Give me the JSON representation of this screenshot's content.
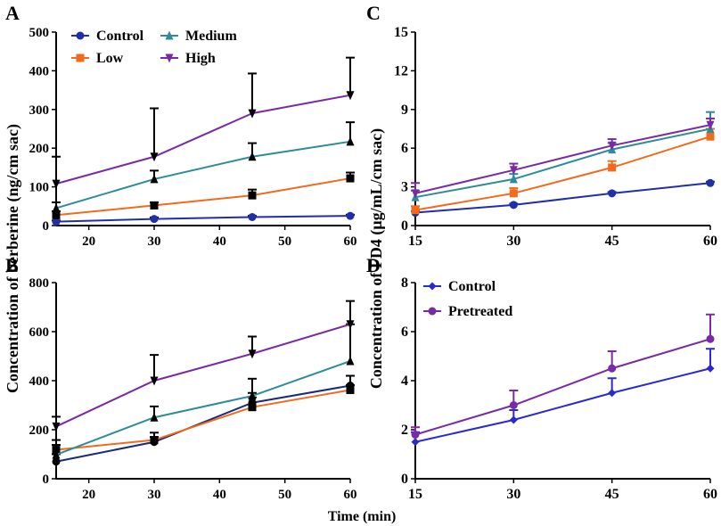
{
  "figure": {
    "shared_ylabel": "Concentration of berberine (ng/cm sac)",
    "shared_ylabel_right": "Concentration of FD4 (μg/mL/cm sac)",
    "shared_xlabel": "Time (min)"
  },
  "chart_data": [
    {
      "panel": "A",
      "type": "line",
      "x": [
        15,
        30,
        45,
        60
      ],
      "xlim": [
        15,
        60
      ],
      "ylim": [
        0,
        500
      ],
      "xticks": [
        "20",
        "30",
        "40",
        "50",
        "60"
      ],
      "yticks": [
        "0",
        "100",
        "200",
        "300",
        "400",
        "500"
      ],
      "legend": "top-left",
      "series": [
        {
          "name": "Control",
          "color": "#1f2fa8",
          "marker": "circle",
          "values": [
            10,
            17,
            22,
            25
          ],
          "errors": [
            3,
            4,
            3,
            3
          ]
        },
        {
          "name": "Low",
          "color": "#f26b1d",
          "marker": "square",
          "values": [
            27,
            52,
            78,
            122
          ],
          "errors": [
            10,
            8,
            15,
            15
          ]
        },
        {
          "name": "Medium",
          "color": "#2e8b99",
          "marker": "triangle-up",
          "values": [
            45,
            120,
            178,
            217
          ],
          "errors": [
            15,
            22,
            35,
            50
          ]
        },
        {
          "name": "High",
          "color": "#7a2aa3",
          "marker": "triangle-down",
          "values": [
            108,
            178,
            290,
            337
          ],
          "errors": [
            70,
            125,
            103,
            97
          ]
        }
      ]
    },
    {
      "panel": "B",
      "type": "line",
      "x": [
        15,
        30,
        45,
        60
      ],
      "xlim": [
        15,
        60
      ],
      "ylim": [
        0,
        800
      ],
      "xticks": [
        "20",
        "30",
        "40",
        "50",
        "60"
      ],
      "yticks": [
        "0",
        "200",
        "400",
        "600",
        "800"
      ],
      "series": [
        {
          "name": "Control",
          "color": "#1a2a7a",
          "marker": "circle",
          "values": [
            70,
            150,
            310,
            380
          ],
          "errors": [
            30,
            20,
            40,
            40
          ]
        },
        {
          "name": "Low",
          "color": "#f26b1d",
          "marker": "square",
          "values": [
            118,
            158,
            292,
            362
          ],
          "errors": [
            40,
            30,
            40,
            20
          ]
        },
        {
          "name": "Medium",
          "color": "#2e8b99",
          "marker": "triangle-up",
          "values": [
            98,
            250,
            338,
            480
          ],
          "errors": [
            40,
            45,
            70,
            150
          ]
        },
        {
          "name": "High",
          "color": "#7a2aa3",
          "marker": "triangle-down",
          "values": [
            213,
            400,
            510,
            630
          ],
          "errors": [
            40,
            105,
            70,
            95
          ]
        }
      ]
    },
    {
      "panel": "C",
      "type": "line",
      "x": [
        15,
        30,
        45,
        60
      ],
      "xlim": [
        15,
        60
      ],
      "ylim": [
        0,
        15
      ],
      "xticks": [
        "15",
        "30",
        "45",
        "60"
      ],
      "yticks": [
        "0",
        "3",
        "6",
        "9",
        "12",
        "15"
      ],
      "series": [
        {
          "name": "Control",
          "color": "#1f2fa8",
          "marker": "circle",
          "values": [
            1.0,
            1.6,
            2.5,
            3.3
          ],
          "errors": [
            0.1,
            0.1,
            0.1,
            0.1
          ]
        },
        {
          "name": "Low",
          "color": "#f26b1d",
          "marker": "square",
          "values": [
            1.2,
            2.5,
            4.5,
            6.9
          ],
          "errors": [
            0.3,
            0.4,
            0.5,
            0.6
          ]
        },
        {
          "name": "Medium",
          "color": "#2e8b99",
          "marker": "triangle-up",
          "values": [
            2.2,
            3.6,
            5.9,
            7.5
          ],
          "errors": [
            0.5,
            0.4,
            0.5,
            1.3
          ]
        },
        {
          "name": "High",
          "color": "#7a2aa3",
          "marker": "triangle-down",
          "values": [
            2.5,
            4.3,
            6.2,
            7.8
          ],
          "errors": [
            0.8,
            0.5,
            0.5,
            0.5
          ]
        }
      ]
    },
    {
      "panel": "D",
      "type": "line",
      "x": [
        15,
        30,
        45,
        60
      ],
      "xlim": [
        15,
        60
      ],
      "ylim": [
        0,
        8
      ],
      "xticks": [
        "15",
        "30",
        "45",
        "60"
      ],
      "yticks": [
        "0",
        "2",
        "4",
        "6",
        "8"
      ],
      "legend": "top-left",
      "series": [
        {
          "name": "Control",
          "color": "#2a2acf",
          "marker": "diamond",
          "values": [
            1.5,
            2.4,
            3.5,
            4.5
          ],
          "errors": [
            0.4,
            0.4,
            0.6,
            0.8
          ]
        },
        {
          "name": "Pretreated",
          "color": "#7a2aa3",
          "marker": "circle",
          "values": [
            1.8,
            3.0,
            4.5,
            5.7
          ],
          "errors": [
            0.3,
            0.6,
            0.7,
            1.0
          ]
        }
      ]
    }
  ]
}
